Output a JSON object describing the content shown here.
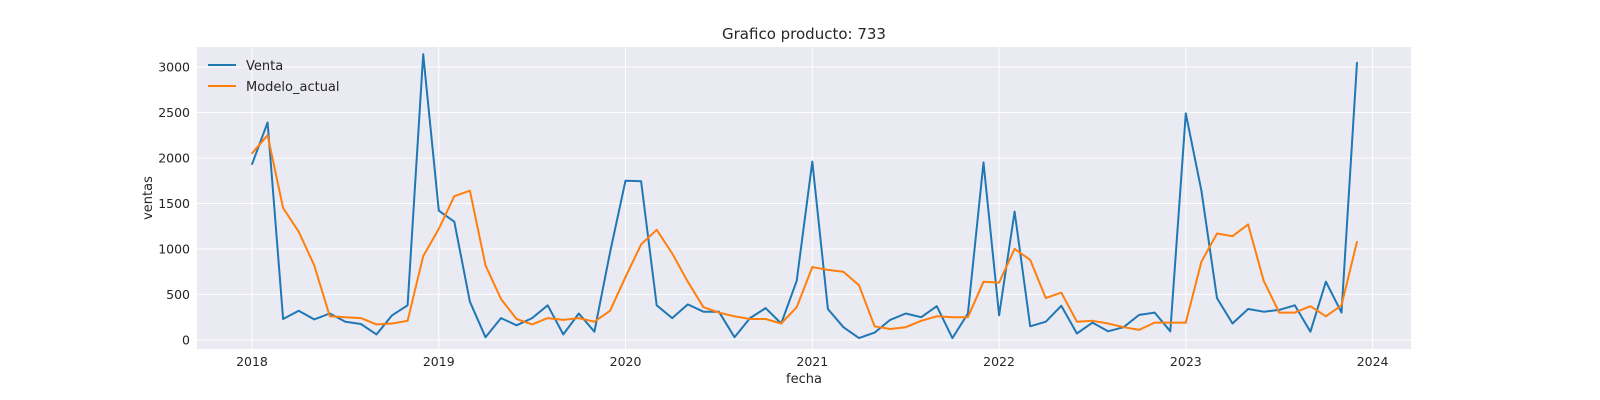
{
  "chart_data": {
    "type": "line",
    "title": "Grafico producto: 733",
    "xlabel": "fecha",
    "ylabel": "ventas",
    "x_ticks": [
      "2018",
      "2019",
      "2020",
      "2021",
      "2022",
      "2023",
      "2024"
    ],
    "y_ticks": [
      0,
      500,
      1000,
      1500,
      2000,
      2500,
      3000
    ],
    "ylim": [
      -100,
      3220
    ],
    "xlim": [
      "2017-09-15",
      "2024-03-15"
    ],
    "x_start": "2018-01",
    "x_step": "month",
    "grid": true,
    "legend_position": "upper left",
    "series": [
      {
        "name": "Venta",
        "color": "#1f77b4",
        "values": [
          1930,
          2390,
          230,
          320,
          225,
          290,
          200,
          175,
          60,
          270,
          380,
          3140,
          1420,
          1300,
          420,
          30,
          240,
          160,
          240,
          380,
          60,
          290,
          90,
          960,
          1750,
          1745,
          380,
          240,
          390,
          310,
          310,
          30,
          240,
          350,
          180,
          650,
          1960,
          340,
          140,
          20,
          80,
          220,
          290,
          250,
          370,
          20,
          290,
          1950,
          270,
          1410,
          150,
          200,
          375,
          70,
          190,
          95,
          140,
          275,
          300,
          95,
          2490,
          1640,
          460,
          180,
          340,
          310,
          330,
          380,
          90,
          640,
          300,
          3050
        ]
      },
      {
        "name": "Modelo_actual",
        "color": "#ff7f0e",
        "values": [
          2050,
          2250,
          1450,
          1190,
          820,
          260,
          250,
          240,
          170,
          180,
          210,
          920,
          1220,
          1580,
          1640,
          820,
          450,
          230,
          170,
          240,
          220,
          240,
          200,
          320,
          690,
          1050,
          1210,
          950,
          640,
          360,
          300,
          260,
          230,
          230,
          180,
          360,
          800,
          770,
          750,
          600,
          150,
          120,
          140,
          210,
          260,
          250,
          250,
          640,
          630,
          1000,
          880,
          460,
          520,
          200,
          210,
          180,
          140,
          110,
          190,
          190,
          190,
          860,
          1170,
          1140,
          1270,
          650,
          300,
          300,
          370,
          260,
          380,
          1080
        ]
      }
    ]
  }
}
